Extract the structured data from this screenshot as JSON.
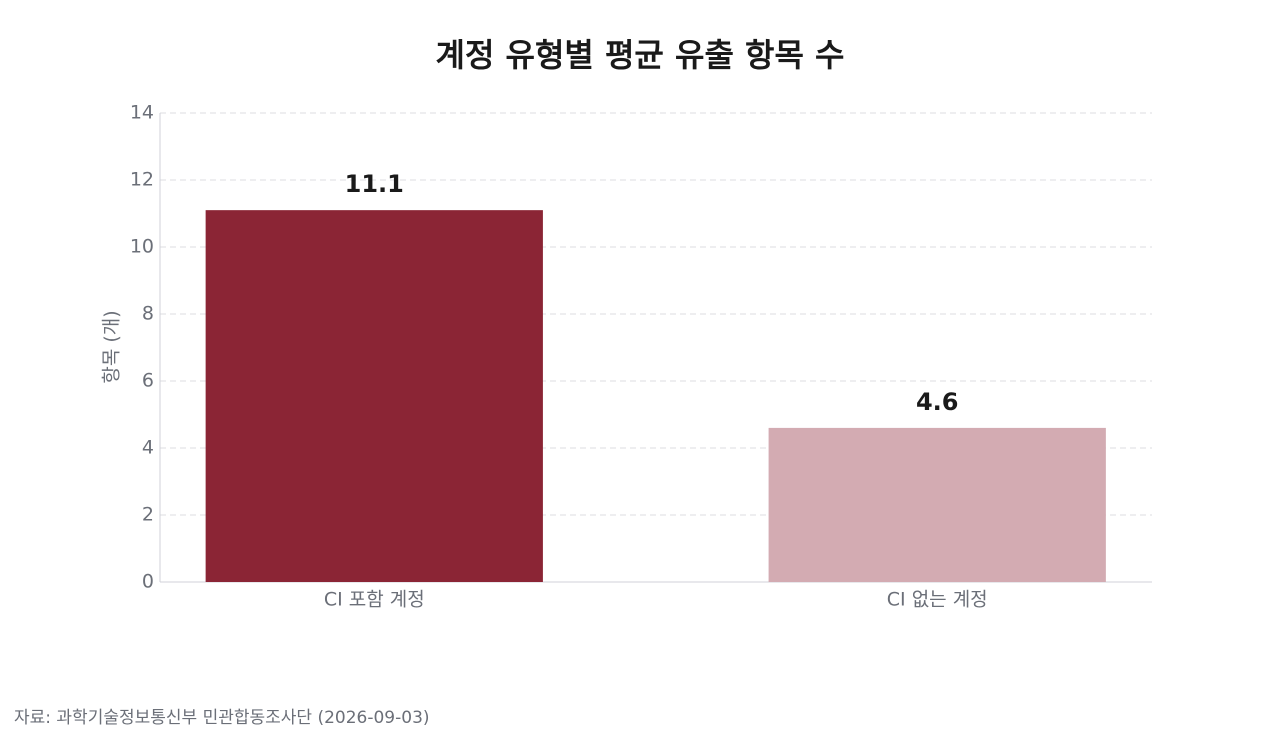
{
  "chart_data": {
    "type": "bar",
    "title": "계정 유형별 평균 유출 항목 수",
    "categories": [
      "CI 포함 계정",
      "CI 없는 계정"
    ],
    "values": [
      11.1,
      4.6
    ],
    "colors": [
      "#8b2535",
      "#d3abb2"
    ],
    "y_label": "항목 (개)",
    "ylim": [
      0,
      14
    ],
    "yticks": [
      0,
      2,
      4,
      6,
      8,
      10,
      12,
      14
    ],
    "grid": true,
    "source": "자료: 과학기술정보통신부 민관합동조사단 (2026-09-03)"
  }
}
